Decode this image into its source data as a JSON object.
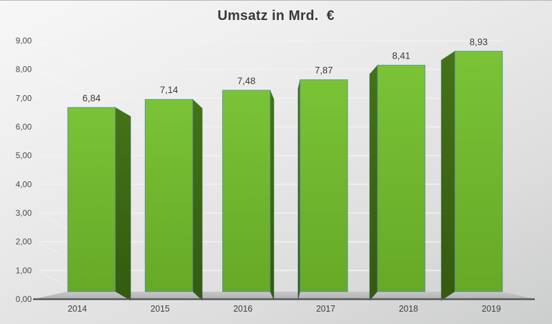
{
  "title": "Umsatz in Mrd.  €",
  "chart_data": {
    "type": "bar",
    "style": "3d-perspective-columns",
    "title": "Umsatz in Mrd.  €",
    "categories": [
      "2014",
      "2015",
      "2016",
      "2017",
      "2018",
      "2019"
    ],
    "values": [
      6.84,
      7.14,
      7.48,
      7.87,
      8.41,
      8.93
    ],
    "value_labels": [
      "6,84",
      "7,14",
      "7,48",
      "7,87",
      "8,41",
      "8,93"
    ],
    "xlabel": "",
    "ylabel": "",
    "ylim": [
      0,
      9
    ],
    "ytick_step": 1,
    "ytick_labels": [
      "0,00",
      "1,00",
      "2,00",
      "3,00",
      "4,00",
      "5,00",
      "6,00",
      "7,00",
      "8,00",
      "9,00"
    ],
    "grid": true,
    "legend": false,
    "colors": {
      "bar_front_top": "#7ac336",
      "bar_front_bottom": "#66a926",
      "bar_side_top": "#447317",
      "bar_side_bottom": "#345a0f",
      "bar_outline": "#4d84a8",
      "floor_top": "#c7c7c7",
      "floor_bottom": "#b2b2b2",
      "axis_line": "#55565a",
      "gridline": "#f2f2f2",
      "tick_text": "#4a4a4a",
      "category_text": "#3d3d3d",
      "value_text": "#3a3a3a",
      "title_text": "#383838"
    }
  }
}
